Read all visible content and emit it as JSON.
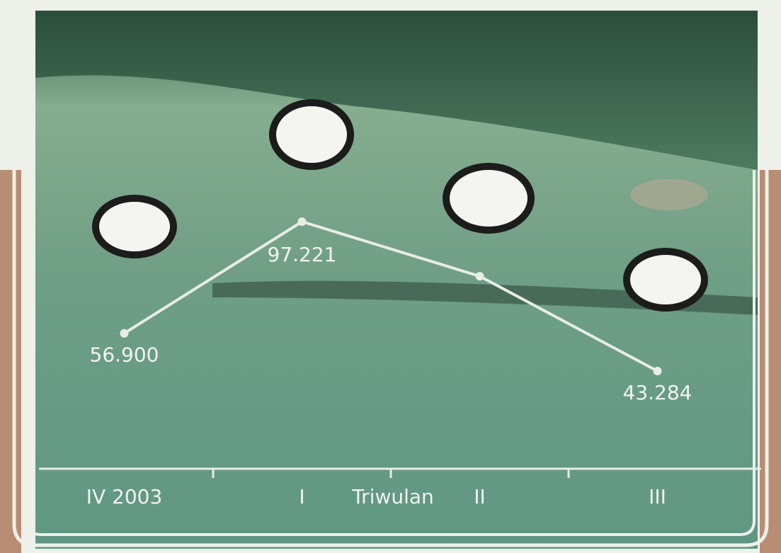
{
  "chart_data": {
    "type": "line",
    "x_label": "Triwulan",
    "categories": [
      "IV 2003",
      "I",
      "II",
      "III"
    ],
    "values": [
      56900,
      97221,
      77500,
      43284
    ],
    "value_labels": [
      "56.900",
      "97.221",
      null,
      "43.284"
    ],
    "color": "#e8ece6"
  }
}
